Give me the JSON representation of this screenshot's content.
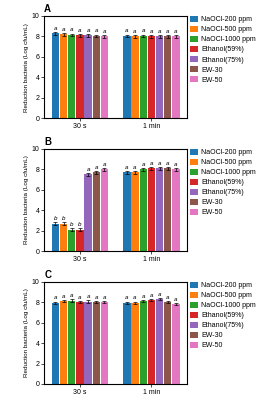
{
  "chart_data": [
    {
      "type": "bar",
      "title": "A",
      "categories": [
        "30 s",
        "1 min"
      ],
      "ylabel": "Reduction bacteria (Log cfu/mL)",
      "ylim": [
        0,
        10
      ],
      "yticks": [
        0,
        2,
        4,
        6,
        8,
        10
      ],
      "grid": false,
      "legend": "upper left",
      "series": [
        {
          "name": "NaOCl-200 ppm",
          "values": [
            8.3,
            8.05
          ],
          "errors": [
            0.12,
            0.12
          ],
          "annotations": [
            "a",
            "a"
          ]
        },
        {
          "name": "NaOCl-500 ppm",
          "values": [
            8.2,
            8.0
          ],
          "errors": [
            0.12,
            0.12
          ],
          "annotations": [
            "a",
            "a"
          ]
        },
        {
          "name": "NaOCl-1000 ppm",
          "values": [
            8.15,
            8.05
          ],
          "errors": [
            0.12,
            0.12
          ],
          "annotations": [
            "a",
            "a"
          ]
        },
        {
          "name": "Ethanol(59%)",
          "values": [
            8.1,
            8.0
          ],
          "errors": [
            0.12,
            0.12
          ],
          "annotations": [
            "a",
            "a"
          ]
        },
        {
          "name": "Ethanol(75%)",
          "values": [
            8.1,
            8.0
          ],
          "errors": [
            0.12,
            0.12
          ],
          "annotations": [
            "a",
            "a"
          ]
        },
        {
          "name": "EW-30",
          "values": [
            8.05,
            8.0
          ],
          "errors": [
            0.12,
            0.12
          ],
          "annotations": [
            "a",
            "a"
          ]
        },
        {
          "name": "EW-50",
          "values": [
            8.0,
            8.0
          ],
          "errors": [
            0.12,
            0.12
          ],
          "annotations": [
            "a",
            "a"
          ]
        }
      ]
    },
    {
      "type": "bar",
      "title": "B",
      "categories": [
        "30 s",
        "1 min"
      ],
      "ylabel": "Reduction bacteria (Log cfu/mL)",
      "ylim": [
        0,
        10
      ],
      "yticks": [
        0,
        2,
        4,
        6,
        8,
        10
      ],
      "grid": false,
      "legend": "upper left",
      "series": [
        {
          "name": "NaOCl-200 ppm",
          "values": [
            2.7,
            7.7
          ],
          "errors": [
            0.12,
            0.12
          ],
          "annotations": [
            "b",
            "a"
          ]
        },
        {
          "name": "NaOCl-500 ppm",
          "values": [
            2.7,
            7.7
          ],
          "errors": [
            0.12,
            0.12
          ],
          "annotations": [
            "b",
            "a"
          ]
        },
        {
          "name": "NaOCl-1000 ppm",
          "values": [
            2.1,
            8.0
          ],
          "errors": [
            0.12,
            0.12
          ],
          "annotations": [
            "b",
            "a"
          ]
        },
        {
          "name": "Ethanol(59%)",
          "values": [
            2.1,
            8.1
          ],
          "errors": [
            0.12,
            0.12
          ],
          "annotations": [
            "b",
            "a"
          ]
        },
        {
          "name": "Ethanol(75%)",
          "values": [
            7.5,
            8.1
          ],
          "errors": [
            0.12,
            0.12
          ],
          "annotations": [
            "a",
            "a"
          ]
        },
        {
          "name": "EW-30",
          "values": [
            7.7,
            8.1
          ],
          "errors": [
            0.12,
            0.12
          ],
          "annotations": [
            "a",
            "a"
          ]
        },
        {
          "name": "EW-50",
          "values": [
            8.0,
            8.0
          ],
          "errors": [
            0.12,
            0.12
          ],
          "annotations": [
            "a",
            "a"
          ]
        }
      ]
    },
    {
      "type": "bar",
      "title": "C",
      "categories": [
        "30 s",
        "1 min"
      ],
      "ylabel": "Reduction bacteria (Log cfu/mL)",
      "ylim": [
        0,
        10
      ],
      "yticks": [
        0,
        2,
        4,
        6,
        8,
        10
      ],
      "grid": false,
      "legend": "upper left",
      "series": [
        {
          "name": "NaOCl-200 ppm",
          "values": [
            7.95,
            7.95
          ],
          "errors": [
            0.12,
            0.12
          ],
          "annotations": [
            "a",
            "a"
          ]
        },
        {
          "name": "NaOCl-500 ppm",
          "values": [
            8.1,
            7.95
          ],
          "errors": [
            0.12,
            0.12
          ],
          "annotations": [
            "a",
            "a"
          ]
        },
        {
          "name": "NaOCl-1000 ppm",
          "values": [
            8.15,
            8.1
          ],
          "errors": [
            0.12,
            0.12
          ],
          "annotations": [
            "a",
            "a"
          ]
        },
        {
          "name": "Ethanol(59%)",
          "values": [
            8.0,
            8.2
          ],
          "errors": [
            0.12,
            0.12
          ],
          "annotations": [
            "a",
            "a"
          ]
        },
        {
          "name": "Ethanol(75%)",
          "values": [
            8.05,
            8.3
          ],
          "errors": [
            0.12,
            0.12
          ],
          "annotations": [
            "a",
            "a"
          ]
        },
        {
          "name": "EW-30",
          "values": [
            8.0,
            8.0
          ],
          "errors": [
            0.12,
            0.12
          ],
          "annotations": [
            "a",
            "a"
          ]
        },
        {
          "name": "EW-50",
          "values": [
            8.0,
            7.8
          ],
          "errors": [
            0.12,
            0.12
          ],
          "annotations": [
            "a",
            "a"
          ]
        }
      ]
    }
  ]
}
